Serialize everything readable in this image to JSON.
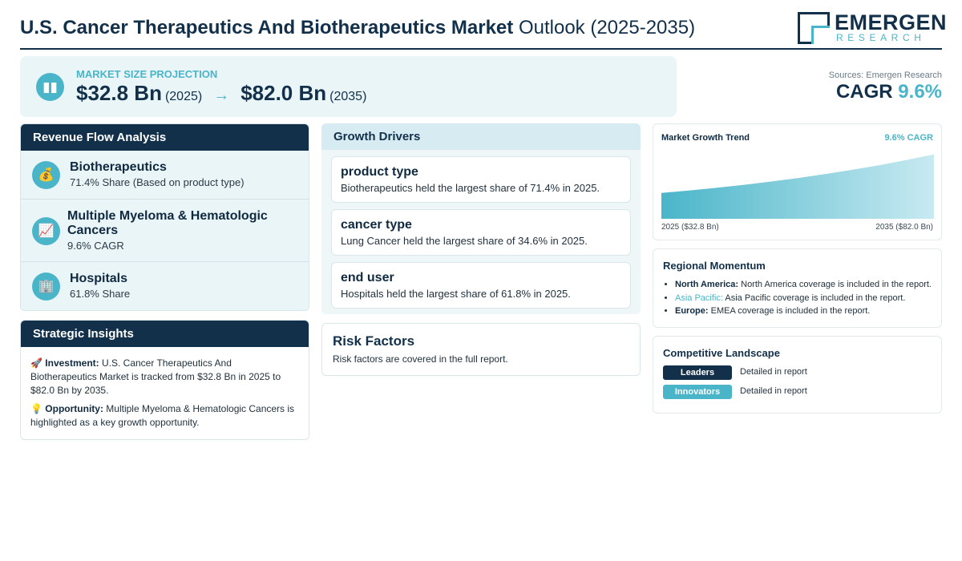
{
  "header": {
    "title_strong": "U.S. Cancer Therapeutics And Biotherapeutics Market",
    "title_rest": "Outlook (2025-2035)",
    "logo_name": "EMERGEN",
    "logo_sub": "RESEARCH"
  },
  "projection": {
    "icon": "bar-chart-icon",
    "label": "MARKET SIZE PROJECTION",
    "start_value": "$32.8 Bn",
    "start_year": "(2025)",
    "arrow": "→",
    "end_value": "$82.0 Bn",
    "end_year": "(2035)"
  },
  "summary": {
    "sources": "Sources: Emergen Research",
    "cagr_label": "CAGR",
    "cagr_value": "9.6%"
  },
  "revenue_flow": {
    "title": "Revenue Flow Analysis",
    "items": [
      {
        "icon": "money-bag-icon",
        "glyph": "💰",
        "title": "Biotherapeutics",
        "sub": "71.4% Share (Based on product type)"
      },
      {
        "icon": "trend-chart-icon",
        "glyph": "📈",
        "title": "Multiple Myeloma & Hematologic Cancers",
        "sub": "9.6% CAGR"
      },
      {
        "icon": "building-icon",
        "glyph": "🏢",
        "title": "Hospitals",
        "sub": "61.8% Share"
      }
    ]
  },
  "strategic": {
    "title": "Strategic Insights",
    "investment_glyph": "🚀",
    "investment_label": "Investment:",
    "investment_text": "U.S. Cancer Therapeutics And Biotherapeutics Market is tracked from $32.8 Bn in 2025 to $82.0 Bn by 2035.",
    "opportunity_glyph": "💡",
    "opportunity_label": "Opportunity:",
    "opportunity_text": "Multiple Myeloma & Hematologic Cancers is highlighted as a key growth opportunity."
  },
  "drivers": {
    "title": "Growth Drivers",
    "items": [
      {
        "title": "product type",
        "text": "Biotherapeutics held the largest share of 71.4% in 2025."
      },
      {
        "title": "cancer type",
        "text": "Lung Cancer held the largest share of 34.6% in 2025."
      },
      {
        "title": "end user",
        "text": "Hospitals held the largest share of 61.8% in 2025."
      }
    ]
  },
  "risk": {
    "title": "Risk Factors",
    "text": "Risk factors are covered in the full report."
  },
  "trend": {
    "title": "Market Growth Trend",
    "cagr": "9.6% CAGR",
    "start_label": "2025 ($32.8 Bn)",
    "end_label": "2035 ($82.0 Bn)",
    "area_color_top": "#c8eaf1",
    "area_color_bottom": "#4ab5c9"
  },
  "chart_data": {
    "type": "area",
    "title": "Market Growth Trend",
    "x": [
      2025,
      2035
    ],
    "series": [
      {
        "values": [
          32.8,
          82.0
        ]
      }
    ],
    "xlabel": "",
    "ylabel": ""
  },
  "regional": {
    "title": "Regional Momentum",
    "items": [
      {
        "name": "North America:",
        "text": "North America coverage is included in the report."
      },
      {
        "name": "Asia Pacific:",
        "text": "Asia Pacific coverage is included in the report."
      },
      {
        "name": "Europe:",
        "text": "EMEA coverage is included in the report."
      }
    ]
  },
  "competitive": {
    "title": "Competitive Landscape",
    "rows": [
      {
        "label": "Leaders",
        "text": "Detailed in report"
      },
      {
        "label": "Innovators",
        "text": "Detailed in report"
      }
    ]
  },
  "colors": {
    "navy": "#12304a",
    "accent": "#4ab5c9",
    "panel": "#eaf5f8"
  }
}
